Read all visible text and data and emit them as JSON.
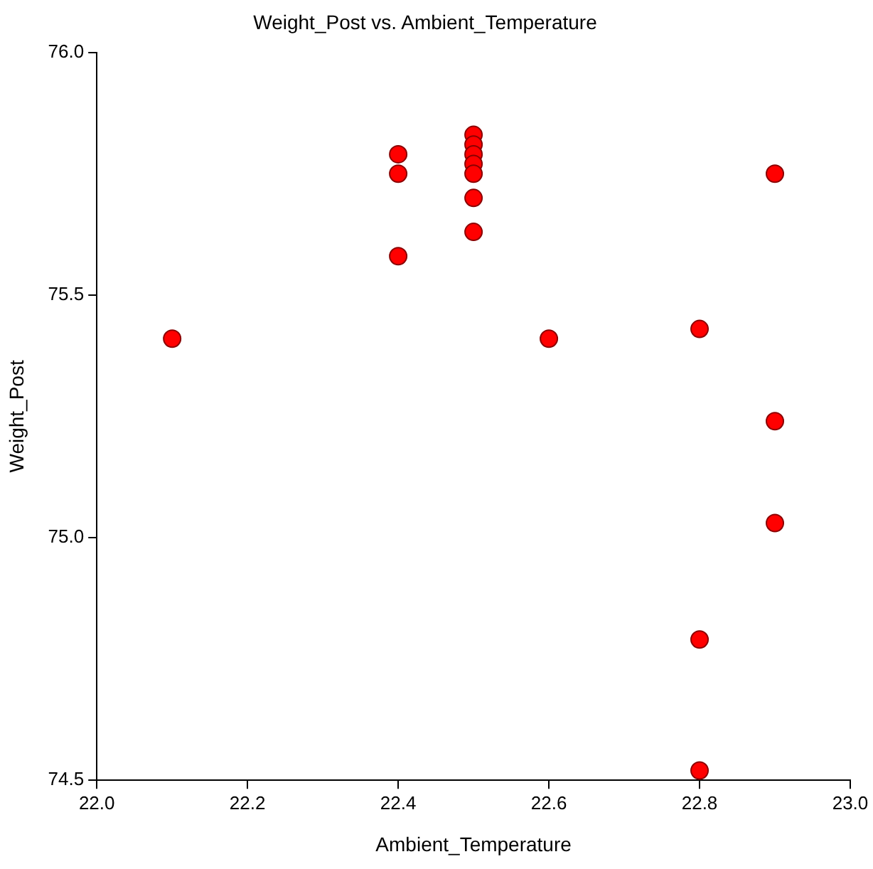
{
  "chart_data": {
    "type": "scatter",
    "title": "Weight_Post vs. Ambient_Temperature",
    "xlabel": "Ambient_Temperature",
    "ylabel": "Weight_Post",
    "x": [
      22.1,
      22.4,
      22.4,
      22.4,
      22.5,
      22.5,
      22.5,
      22.5,
      22.5,
      22.5,
      22.5,
      22.6,
      22.8,
      22.8,
      22.8,
      22.9,
      22.9,
      22.9
    ],
    "series": [
      {
        "color": "#ff0000",
        "values": [
          75.41,
          75.79,
          75.75,
          75.58,
          75.83,
          75.81,
          75.79,
          75.77,
          75.75,
          75.7,
          75.63,
          75.41,
          75.43,
          74.79,
          74.52,
          75.75,
          75.24,
          75.03
        ]
      }
    ],
    "xlim": [
      22.0,
      23.0
    ],
    "xticks": [
      {
        "value": 22.0,
        "label": "22.0"
      },
      {
        "value": 22.2,
        "label": "22.2"
      },
      {
        "value": 22.4,
        "label": "22.4"
      },
      {
        "value": 22.6,
        "label": "22.6"
      },
      {
        "value": 22.8,
        "label": "22.8"
      },
      {
        "value": 23.0,
        "label": "23.0"
      }
    ],
    "ylim": [
      74.5,
      76.0
    ],
    "yticks": [
      {
        "value": 74.5,
        "label": "74.5"
      },
      {
        "value": 75.0,
        "label": "75.0"
      },
      {
        "value": 75.5,
        "label": "75.5"
      },
      {
        "value": 76.0,
        "label": "76.0"
      }
    ],
    "marker": "circle",
    "grid": false,
    "legend": false
  }
}
